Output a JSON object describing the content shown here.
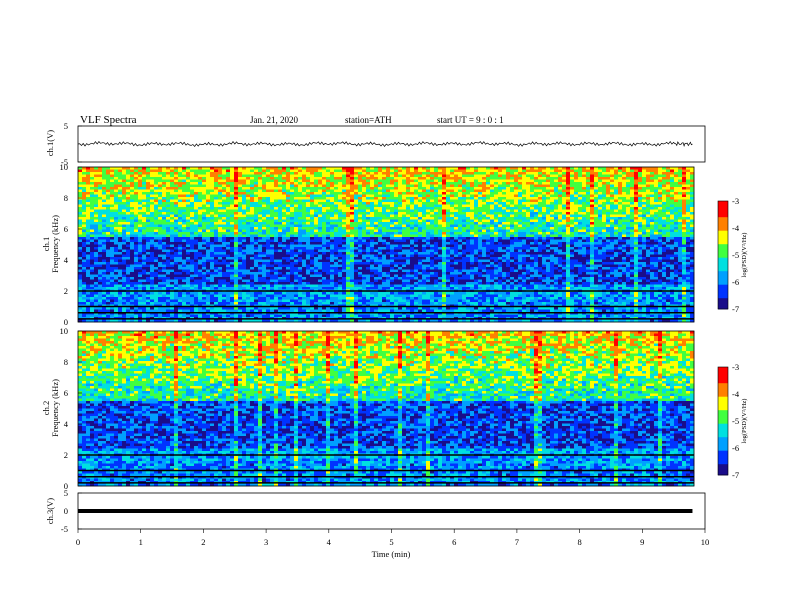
{
  "header": {
    "title": "VLF  Spectra",
    "date": "Jan. 21, 2020",
    "station": "station=ATH",
    "start": "start  UT  =   9  : 0  : 1"
  },
  "chart_data": [
    {
      "type": "line",
      "name": "ch1-waveform",
      "ylabel": "ch.1(V)",
      "ylim": [
        -5,
        5
      ],
      "yticks": [
        "5",
        "-5"
      ],
      "xlim": [
        0,
        10
      ],
      "x": [
        0,
        0.5,
        1,
        1.5,
        2,
        2.5,
        3,
        3.5,
        4,
        4.5,
        5,
        5.5,
        6,
        6.5,
        7,
        7.5,
        8,
        8.5,
        9,
        9.5,
        9.8
      ],
      "y": [
        0,
        0.2,
        -0.1,
        0.1,
        -0.2,
        0.1,
        0,
        -0.1,
        0.2,
        0,
        -0.1,
        0.1,
        0,
        0.2,
        -0.1,
        0.1,
        0,
        0.1,
        -0.1,
        0.1,
        0
      ]
    },
    {
      "type": "heatmap",
      "name": "ch1-spectrogram",
      "ylabel": "ch.1\nFrequency (kHz)",
      "ylim": [
        0,
        10
      ],
      "yticks": [
        "0",
        "2",
        "4",
        "6",
        "8",
        "10"
      ],
      "xlim": [
        0,
        10
      ],
      "colorbar": {
        "label": "log(PSD)(V²/Hz)",
        "range": [
          -7,
          -3
        ],
        "ticks": [
          "-3",
          "-4",
          "-5",
          "-6",
          "-7"
        ]
      }
    },
    {
      "type": "heatmap",
      "name": "ch2-spectrogram",
      "ylabel": "ch.2\nFrequency (kHz)",
      "ylim": [
        0,
        10
      ],
      "yticks": [
        "0",
        "2",
        "4",
        "6",
        "8",
        "10"
      ],
      "xlim": [
        0,
        10
      ],
      "colorbar": {
        "label": "log(PSD)(V²/Hz)",
        "range": [
          -7,
          -3
        ],
        "ticks": [
          "-3",
          "-4",
          "-5",
          "-6",
          "-7"
        ]
      }
    },
    {
      "type": "line",
      "name": "ch3-waveform",
      "ylabel": "ch.3(V)",
      "ylim": [
        -5,
        5
      ],
      "yticks": [
        "5",
        "0",
        "-5"
      ],
      "xlim": [
        0,
        10
      ],
      "x": [
        0,
        9.8
      ],
      "y": [
        0,
        0
      ],
      "xlabel": "Time  (min)",
      "xticks": [
        "0",
        "1",
        "2",
        "3",
        "4",
        "5",
        "6",
        "7",
        "8",
        "9",
        "10"
      ]
    }
  ],
  "colors": {
    "colormap": [
      "#1a0d8a",
      "#0033ff",
      "#00a0ff",
      "#00e0e0",
      "#40ff40",
      "#ffff00",
      "#ff8000",
      "#ff0000",
      "#ffffff"
    ]
  }
}
